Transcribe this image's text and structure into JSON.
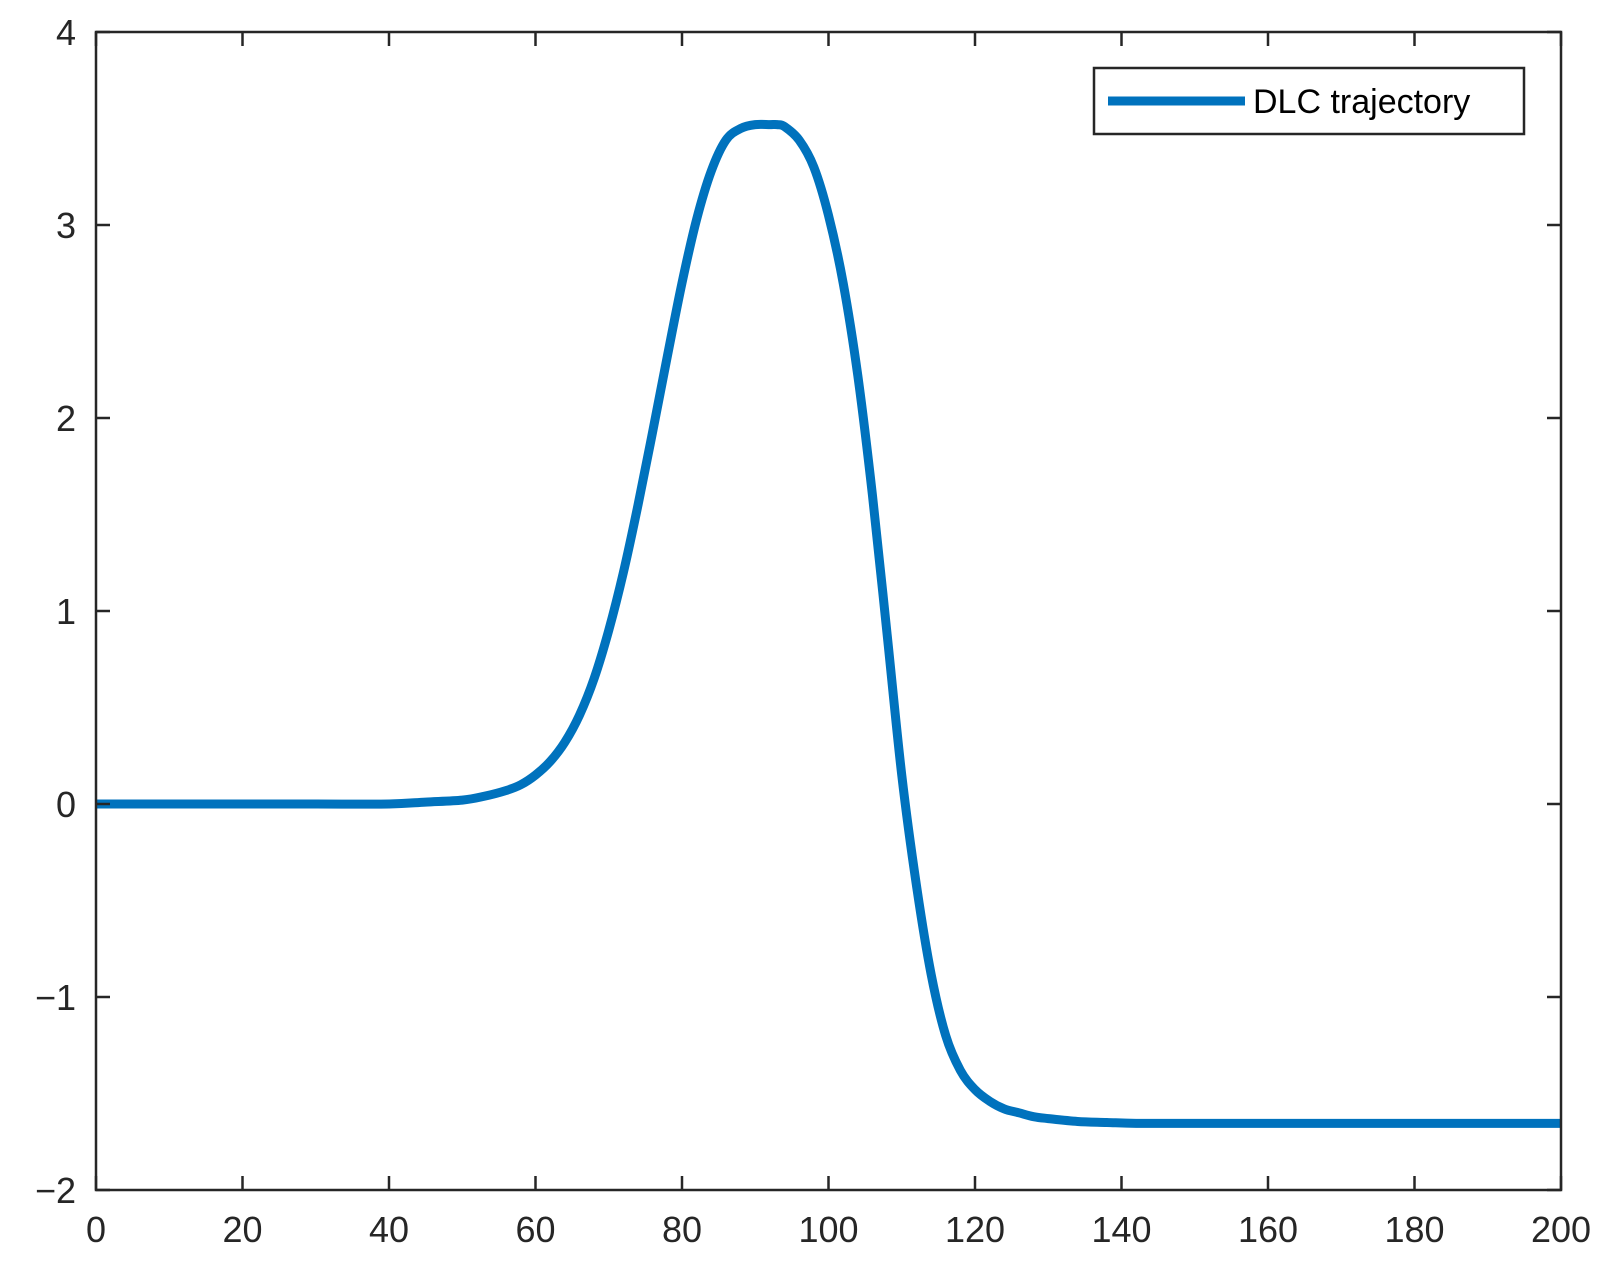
{
  "chart_data": {
    "type": "line",
    "title": "",
    "xlabel": "",
    "ylabel": "",
    "xlim": [
      0,
      200
    ],
    "ylim": [
      -2,
      4
    ],
    "xticks": [
      0,
      20,
      40,
      60,
      80,
      100,
      120,
      140,
      160,
      180,
      200
    ],
    "yticks": [
      -2,
      -1,
      0,
      1,
      2,
      3,
      4
    ],
    "xtick_labels": [
      "0",
      "20",
      "40",
      "60",
      "80",
      "100",
      "120",
      "140",
      "160",
      "180",
      "200"
    ],
    "ytick_labels": [
      "−2",
      "−1",
      "0",
      "1",
      "2",
      "3",
      "4"
    ],
    "grid": false,
    "legend": {
      "position": "top-right",
      "box": true
    },
    "series": [
      {
        "name": "DLC trajectory",
        "color": "#0072BD",
        "x": [
          0,
          10,
          20,
          30,
          40,
          45,
          50,
          53,
          56,
          58,
          60,
          62,
          64,
          66,
          68,
          70,
          72,
          74,
          76,
          78,
          80,
          82,
          84,
          86,
          88,
          90,
          92,
          93,
          94,
          96,
          98,
          100,
          102,
          104,
          106,
          108,
          110,
          112,
          114,
          116,
          118,
          120,
          122,
          124,
          126,
          128,
          130,
          134,
          138,
          142,
          150,
          160,
          180,
          200
        ],
        "y": [
          0,
          0,
          0,
          0,
          0,
          0.01,
          0.02,
          0.04,
          0.07,
          0.1,
          0.15,
          0.22,
          0.32,
          0.46,
          0.65,
          0.9,
          1.2,
          1.55,
          1.93,
          2.32,
          2.7,
          3.03,
          3.28,
          3.44,
          3.5,
          3.52,
          3.52,
          3.52,
          3.51,
          3.44,
          3.3,
          3.05,
          2.7,
          2.22,
          1.6,
          0.88,
          0.15,
          -0.42,
          -0.88,
          -1.2,
          -1.38,
          -1.48,
          -1.54,
          -1.58,
          -1.6,
          -1.62,
          -1.63,
          -1.645,
          -1.65,
          -1.655,
          -1.655,
          -1.655,
          -1.655,
          -1.655
        ]
      }
    ]
  }
}
